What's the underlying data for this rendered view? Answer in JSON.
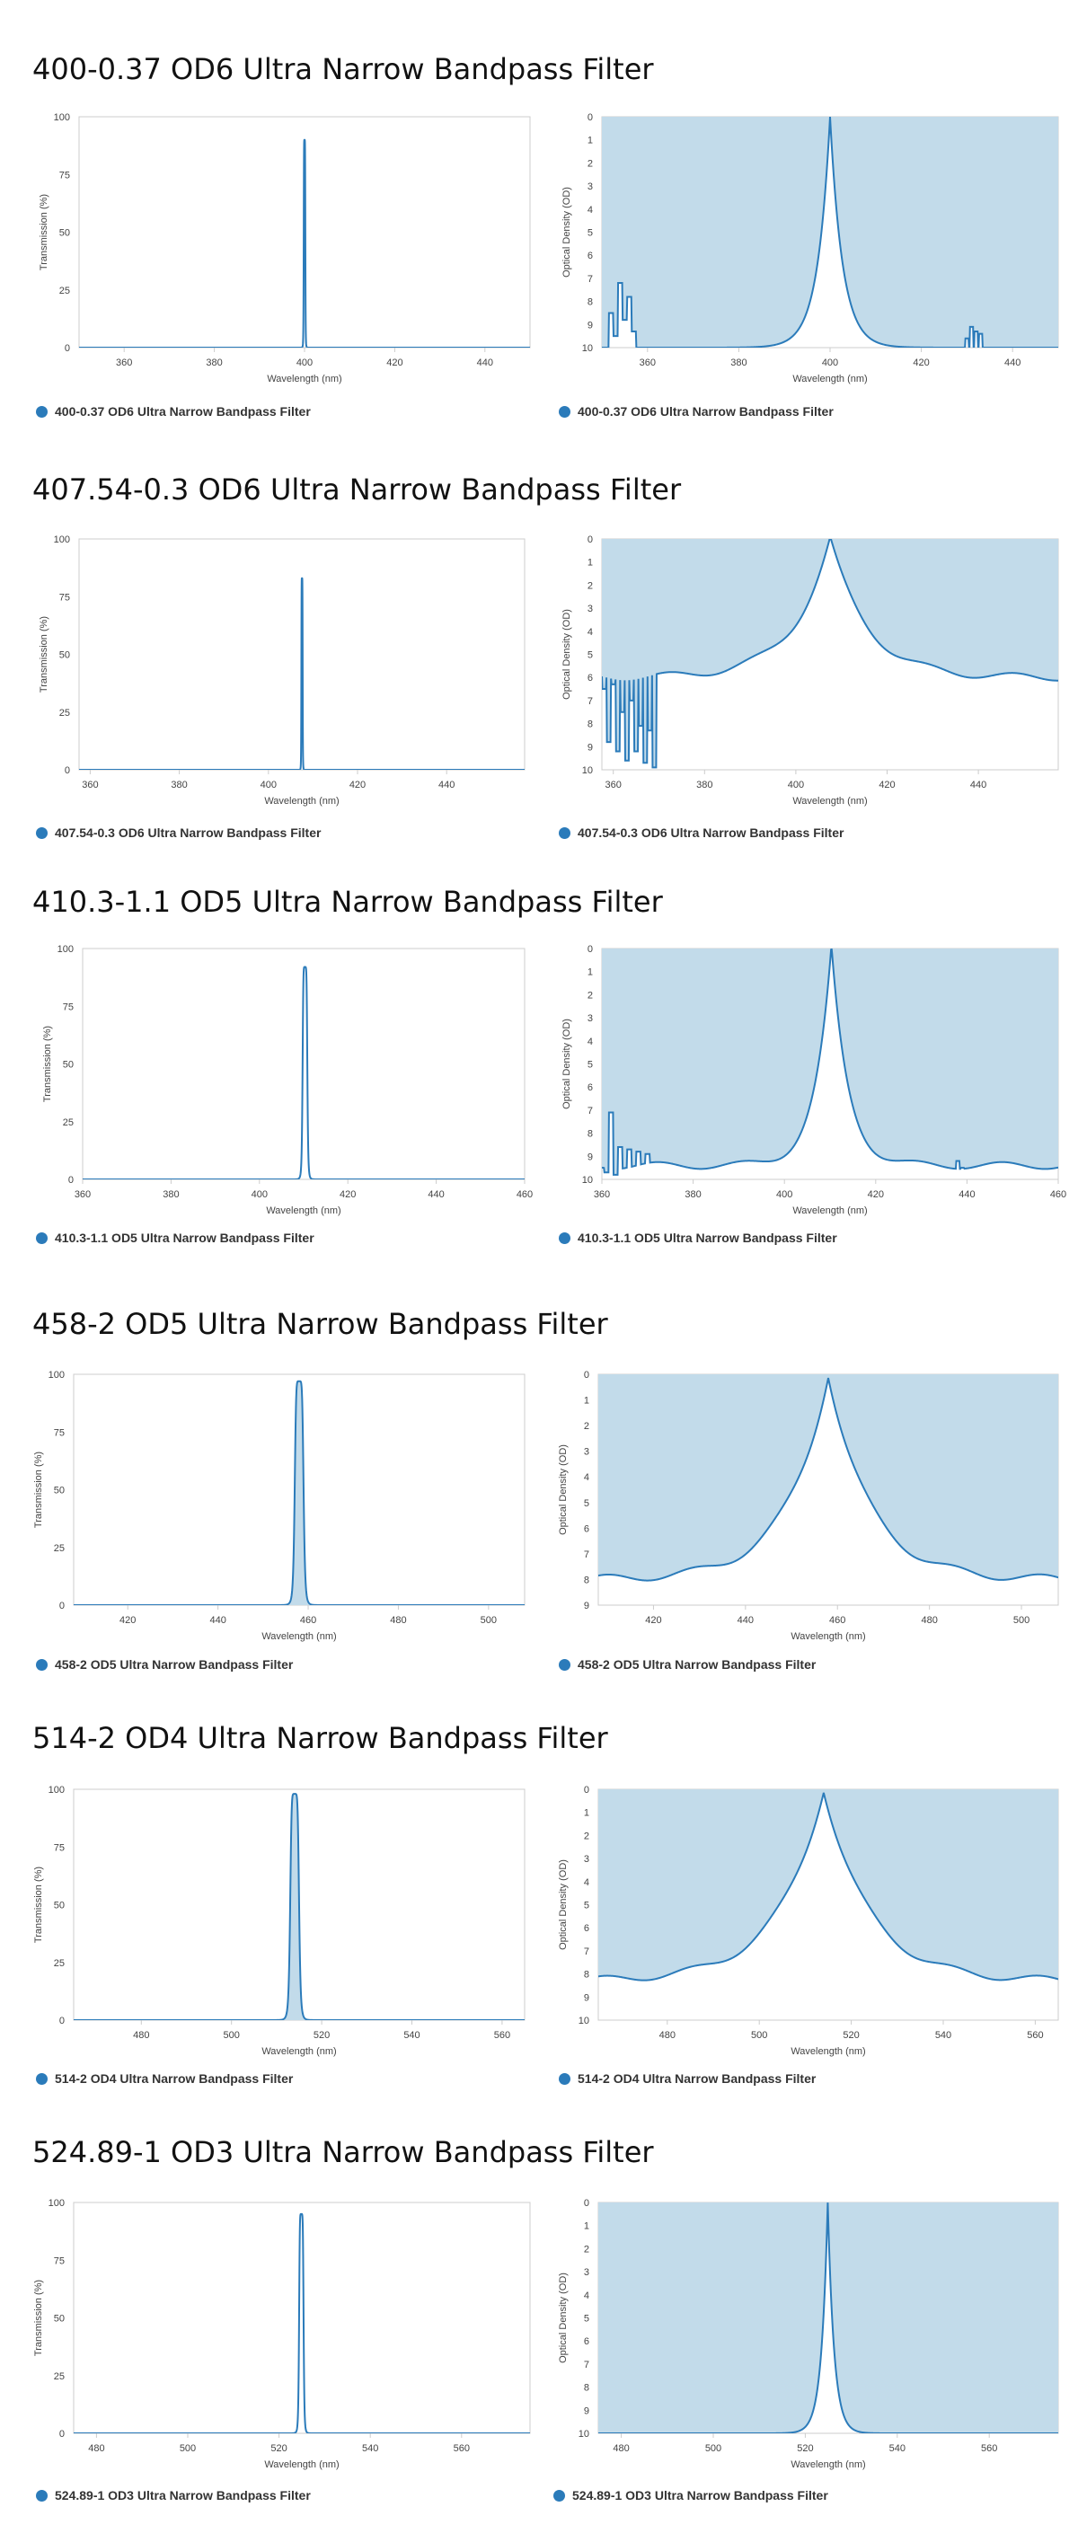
{
  "colors": {
    "line": "#2b7bba",
    "fill": "#c2dbea",
    "axis": "#cccccc",
    "text": "#444444"
  },
  "filters": [
    {
      "title": "400-0.37 OD6 Ultra Narrow Bandpass Filter",
      "left_legend": "400-0.37 OD6 Ultra Narrow Bandpass Filter",
      "right_legend": "400-0.37 OD6 Ultra Narrow Bandpass Filter",
      "chart_data": [
        {
          "type": "line",
          "xlabel": "Wavelength (nm)",
          "ylabel": "Transmission (%)",
          "xlim": [
            350,
            450
          ],
          "xticks": [
            360,
            380,
            400,
            420,
            440
          ],
          "ylim": [
            0,
            100
          ],
          "yticks": [
            0,
            25,
            50,
            75,
            100
          ],
          "center": 400,
          "fwhm": 0.37,
          "peak": 90,
          "area_fill": false
        },
        {
          "type": "area",
          "xlabel": "Wavelength (nm)",
          "ylabel": "Optical Density (OD)",
          "xlim": [
            350,
            450
          ],
          "xticks": [
            360,
            380,
            400,
            420,
            440
          ],
          "ylim": [
            0,
            10
          ],
          "yticks": [
            0,
            1,
            2,
            3,
            4,
            5,
            6,
            7,
            8,
            9,
            10
          ],
          "inverted_y": true,
          "center": 400,
          "width": 6,
          "od_max": 10,
          "noise": [
            [
              352,
              8.5
            ],
            [
              353,
              9.5
            ],
            [
              354,
              7.2
            ],
            [
              355,
              8.8
            ],
            [
              356,
              7.8
            ],
            [
              357,
              9.3
            ]
          ],
          "spikes": [
            [
              430,
              9.6
            ],
            [
              431,
              9.1
            ],
            [
              432,
              9.3
            ],
            [
              433,
              9.4
            ]
          ]
        }
      ]
    },
    {
      "title": "407.54-0.3 OD6 Ultra Narrow Bandpass Filter",
      "left_legend": "407.54-0.3 OD6 Ultra Narrow Bandpass Filter",
      "right_legend": "407.54-0.3 OD6 Ultra Narrow Bandpass Filter",
      "chart_data": [
        {
          "type": "line",
          "xlabel": "Wavelength (nm)",
          "ylabel": "Transmission (%)",
          "xlim": [
            357.5,
            457.5
          ],
          "xticks": [
            360,
            380,
            400,
            420,
            440
          ],
          "ylim": [
            0,
            100
          ],
          "yticks": [
            0,
            25,
            50,
            75,
            100
          ],
          "center": 407.54,
          "fwhm": 0.3,
          "peak": 83,
          "area_fill": false
        },
        {
          "type": "area",
          "xlabel": "Wavelength (nm)",
          "ylabel": "Optical Density (OD)",
          "xlim": [
            357.5,
            457.5
          ],
          "xticks": [
            360,
            380,
            400,
            420,
            440
          ],
          "ylim": [
            0,
            10
          ],
          "yticks": [
            0,
            1,
            2,
            3,
            4,
            5,
            6,
            7,
            8,
            9,
            10
          ],
          "inverted_y": true,
          "center": 407.54,
          "width": 18,
          "od_max": 6,
          "noise": [
            [
              358,
              6.5
            ],
            [
              359,
              8.8
            ],
            [
              360,
              6.3
            ],
            [
              361,
              9.2
            ],
            [
              362,
              7.5
            ],
            [
              363,
              9.6
            ],
            [
              364,
              7.0
            ],
            [
              365,
              9.2
            ],
            [
              366,
              8.1
            ],
            [
              367,
              9.7
            ],
            [
              368,
              8.3
            ],
            [
              369,
              9.9
            ]
          ],
          "spikes": [
            [
              385,
              9.4
            ],
            [
              386,
              8.7
            ],
            [
              387,
              9.6
            ],
            [
              388,
              8.4
            ],
            [
              389,
              7.9
            ]
          ]
        }
      ]
    },
    {
      "title": "410.3-1.1 OD5 Ultra Narrow Bandpass Filter",
      "left_legend": "410.3-1.1 OD5 Ultra Narrow Bandpass Filter",
      "right_legend": "410.3-1.1 OD5 Ultra Narrow Bandpass Filter",
      "chart_data": [
        {
          "type": "line",
          "xlabel": "Wavelength (nm)",
          "ylabel": "Transmission (%)",
          "xlim": [
            360,
            460
          ],
          "xticks": [
            360,
            380,
            400,
            420,
            440,
            460
          ],
          "ylim": [
            0,
            100
          ],
          "yticks": [
            0,
            25,
            50,
            75,
            100
          ],
          "center": 410.3,
          "fwhm": 1.1,
          "peak": 92,
          "area_fill": false
        },
        {
          "type": "area",
          "xlabel": "Wavelength (nm)",
          "ylabel": "Optical Density (OD)",
          "xlim": [
            360,
            460
          ],
          "xticks": [
            360,
            380,
            400,
            420,
            440,
            460
          ],
          "ylim": [
            0,
            10
          ],
          "yticks": [
            0,
            1,
            2,
            3,
            4,
            5,
            6,
            7,
            8,
            9,
            10
          ],
          "inverted_y": true,
          "center": 410.3,
          "width": 8,
          "od_max": 9.4,
          "noise": [
            [
              361,
              9.7
            ],
            [
              362,
              7.1
            ],
            [
              363,
              9.8
            ],
            [
              364,
              8.6
            ],
            [
              366,
              8.7
            ],
            [
              368,
              8.8
            ],
            [
              370,
              8.9
            ]
          ],
          "spikes": [
            [
              438,
              9.2
            ],
            [
              439,
              9.5
            ]
          ]
        }
      ]
    },
    {
      "title": "458-2 OD5 Ultra Narrow Bandpass Filter",
      "left_legend": "458-2 OD5 Ultra Narrow Bandpass Filter",
      "right_legend": "458-2 OD5 Ultra Narrow Bandpass Filter",
      "chart_data": [
        {
          "type": "area",
          "xlabel": "Wavelength (nm)",
          "ylabel": "Transmission (%)",
          "xlim": [
            408,
            508
          ],
          "xticks": [
            420,
            440,
            460,
            480,
            500
          ],
          "ylim": [
            0,
            100
          ],
          "yticks": [
            0,
            25,
            50,
            75,
            100
          ],
          "center": 458,
          "fwhm": 2,
          "peak": 97,
          "area_fill": true
        },
        {
          "type": "area",
          "xlabel": "Wavelength (nm)",
          "ylabel": "Optical Density (OD)",
          "xlim": [
            408,
            508
          ],
          "xticks": [
            420,
            440,
            460,
            480,
            500
          ],
          "ylim": [
            0,
            9
          ],
          "yticks": [
            0,
            1,
            2,
            3,
            4,
            5,
            6,
            7,
            8,
            9
          ],
          "inverted_y": true,
          "center": 458,
          "width": 20,
          "od_max": 8,
          "noise": [],
          "spikes": []
        }
      ]
    },
    {
      "title": "514-2 OD4 Ultra Narrow Bandpass Filter",
      "left_legend": "514-2 OD4 Ultra Narrow Bandpass Filter",
      "right_legend": "514-2 OD4 Ultra Narrow Bandpass Filter",
      "chart_data": [
        {
          "type": "area",
          "xlabel": "Wavelength (nm)",
          "ylabel": "Transmission (%)",
          "xlim": [
            465,
            565
          ],
          "xticks": [
            480,
            500,
            520,
            540,
            560
          ],
          "ylim": [
            0,
            100
          ],
          "yticks": [
            0,
            25,
            50,
            75,
            100
          ],
          "center": 514,
          "fwhm": 2,
          "peak": 98,
          "area_fill": true
        },
        {
          "type": "area",
          "xlabel": "Wavelength (nm)",
          "ylabel": "Optical Density (OD)",
          "xlim": [
            465,
            565
          ],
          "xticks": [
            480,
            500,
            520,
            540,
            560
          ],
          "ylim": [
            0,
            10
          ],
          "yticks": [
            0,
            1,
            2,
            3,
            4,
            5,
            6,
            7,
            8,
            9,
            10
          ],
          "inverted_y": true,
          "center": 514,
          "width": 22,
          "od_max": 8.3,
          "noise": [],
          "spikes": []
        }
      ]
    },
    {
      "title": "524.89-1 OD3 Ultra Narrow Bandpass Filter",
      "left_legend": "524.89-1 OD3 Ultra Narrow Bandpass Filter",
      "right_legend": "524.89-1 OD3 Ultra Narrow Bandpass Filter",
      "chart_data": [
        {
          "type": "line",
          "xlabel": "Wavelength (nm)",
          "ylabel": "Transmission (%)",
          "xlim": [
            475,
            575
          ],
          "xticks": [
            480,
            500,
            520,
            540,
            560
          ],
          "ylim": [
            0,
            100
          ],
          "yticks": [
            0,
            25,
            50,
            75,
            100
          ],
          "center": 524.89,
          "fwhm": 1,
          "peak": 95,
          "area_fill": false
        },
        {
          "type": "area",
          "xlabel": "Wavelength (nm)",
          "ylabel": "Optical Density (OD)",
          "xlim": [
            475,
            575
          ],
          "xticks": [
            480,
            500,
            520,
            540,
            560
          ],
          "ylim": [
            0,
            10
          ],
          "yticks": [
            0,
            1,
            2,
            3,
            4,
            5,
            6,
            7,
            8,
            9,
            10
          ],
          "inverted_y": true,
          "center": 524.89,
          "width": 3,
          "od_max": 10,
          "noise": [],
          "spikes": []
        }
      ]
    }
  ]
}
